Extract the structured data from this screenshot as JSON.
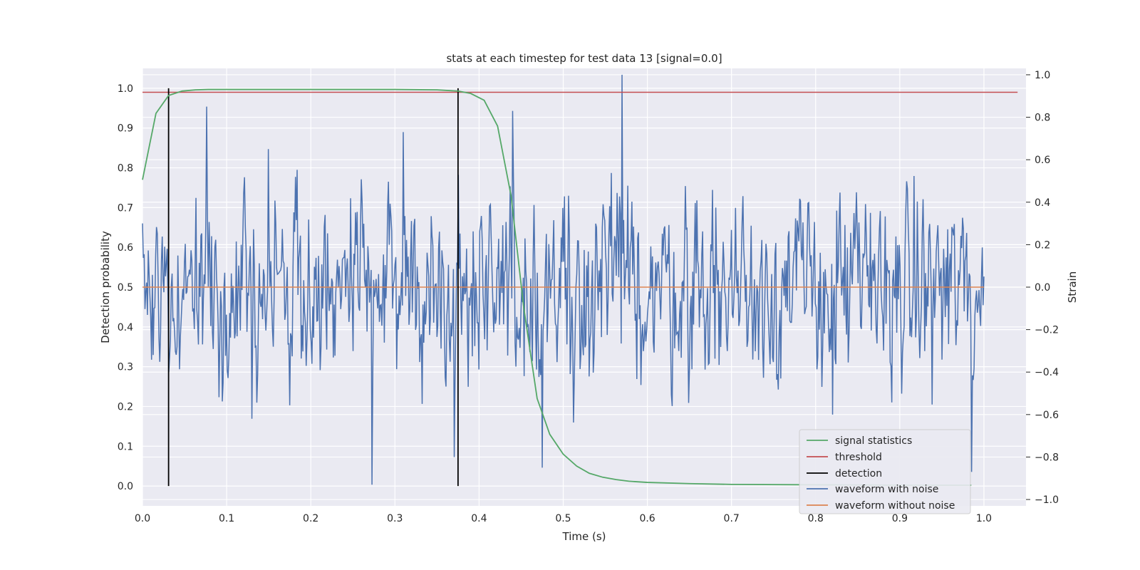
{
  "chart_data": {
    "type": "line",
    "title": "stats at each timestep for test data 13 [signal=0.0]",
    "xlabel": "Time (s)",
    "ylabel_left": "Detection probability",
    "ylabel_right": "Strain",
    "xlim": [
      0.0,
      1.05
    ],
    "ylim_left": [
      -0.05,
      1.05
    ],
    "ylim_right": [
      -1.03,
      1.03
    ],
    "x_ticks": [
      "0.0",
      "0.1",
      "0.2",
      "0.3",
      "0.4",
      "0.5",
      "0.6",
      "0.7",
      "0.8",
      "0.9",
      "1.0"
    ],
    "y_left_ticks": [
      "0.0",
      "0.1",
      "0.2",
      "0.3",
      "0.4",
      "0.5",
      "0.6",
      "0.7",
      "0.8",
      "0.9",
      "1.0"
    ],
    "y_right_ticks": [
      "−1.0",
      "−0.8",
      "−0.6",
      "−0.4",
      "−0.2",
      "0.0",
      "0.2",
      "0.4",
      "0.6",
      "0.8",
      "1.0"
    ],
    "grid": true,
    "legend_position": "bottom-right",
    "series": [
      {
        "name": "signal statistics",
        "color": "#55a868",
        "axis": "left",
        "x": [
          0.0,
          0.016,
          0.031,
          0.047,
          0.063,
          0.078,
          0.1,
          0.2,
          0.3,
          0.35,
          0.375,
          0.39,
          0.406,
          0.422,
          0.438,
          0.453,
          0.469,
          0.484,
          0.5,
          0.516,
          0.531,
          0.547,
          0.563,
          0.578,
          0.6,
          0.65,
          0.7,
          0.8,
          0.9,
          0.985
        ],
        "y": [
          0.77,
          0.937,
          0.982,
          0.993,
          0.996,
          0.997,
          0.997,
          0.997,
          0.997,
          0.996,
          0.993,
          0.987,
          0.97,
          0.905,
          0.73,
          0.45,
          0.22,
          0.13,
          0.08,
          0.05,
          0.032,
          0.022,
          0.016,
          0.012,
          0.009,
          0.006,
          0.004,
          0.003,
          0.002,
          0.002
        ]
      },
      {
        "name": "threshold",
        "color": "#c44e52",
        "axis": "left",
        "x": [
          0.0,
          1.04
        ],
        "y": [
          0.99,
          0.99
        ]
      },
      {
        "name": "detection",
        "color": "#000000",
        "axis": "left",
        "x_lines": [
          0.031,
          0.375
        ],
        "y_range": [
          0.0,
          1.0
        ]
      },
      {
        "name": "waveform with noise",
        "color": "#4c72b0",
        "axis": "right",
        "x_range": [
          0.0,
          1.0
        ],
        "n_points": 1024,
        "sample_x": [
          0.0,
          0.016,
          0.031,
          0.076,
          0.13,
          0.15,
          0.273,
          0.31,
          0.37,
          0.44,
          0.475,
          0.57,
          0.82,
          0.985,
          1.0
        ],
        "sample_y": [
          0.3,
          0.15,
          -0.4,
          0.85,
          -0.62,
          0.65,
          -0.93,
          0.73,
          -0.8,
          0.83,
          -0.85,
          1.0,
          -0.6,
          -0.87,
          0.05
        ],
        "min": -0.93,
        "max": 1.0
      },
      {
        "name": "waveform without noise",
        "color": "#dd8452",
        "axis": "right",
        "x": [
          0.0,
          1.0
        ],
        "y": [
          0.0,
          0.0
        ]
      }
    ]
  }
}
